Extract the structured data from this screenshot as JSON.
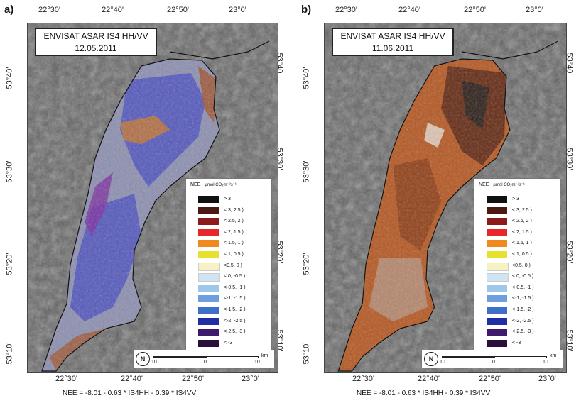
{
  "panels": [
    {
      "letter": "a)",
      "title_line1": "ENVISAT ASAR IS4 HH/VV",
      "title_line2": "12.05.2011",
      "dominant_colors": [
        "#4a4fc0",
        "#7b2ba0",
        "#a0522d",
        "#d2771e"
      ]
    },
    {
      "letter": "b)",
      "title_line1": "ENVISAT ASAR IS4 HH/VV",
      "title_line2": "11.06.2011",
      "dominant_colors": [
        "#5a2410",
        "#8b3a14",
        "#b5561f",
        "#1a1a1a"
      ]
    }
  ],
  "axis": {
    "top_lon_ticks": [
      "22°30'",
      "22°40'",
      "22°50'",
      "23°0'"
    ],
    "bottom_lon_ticks": [
      "22°30'",
      "22°40'",
      "22°50'",
      "23°0'"
    ],
    "left_lat_ticks": [
      "53°40'",
      "53°30'",
      "53°20'",
      "53°10'"
    ],
    "right_lat_ticks": [
      "53°40'",
      "53°30'",
      "53°20'",
      "53°10'"
    ]
  },
  "legend": {
    "title": "NEE",
    "unit": "µmol CO₂m⁻²s⁻¹",
    "classes": [
      {
        "label": "> 3",
        "color": "#111111"
      },
      {
        "label": "< 3, 2.5 )",
        "color": "#4a1a12"
      },
      {
        "label": "< 2.5, 2 )",
        "color": "#8b1a1a"
      },
      {
        "label": "< 2, 1.5 )",
        "color": "#e6262b"
      },
      {
        "label": "< 1.5, 1 )",
        "color": "#f08a1c"
      },
      {
        "label": "< 1, 0.5 )",
        "color": "#e6e02e"
      },
      {
        "label": "<0.5, 0 )",
        "color": "#f7f2c4"
      },
      {
        "label": "< 0, -0.5 )",
        "color": "#cfe4f4"
      },
      {
        "label": "<-0.5, -1 )",
        "color": "#9fc7ea"
      },
      {
        "label": "<-1, -1.5 )",
        "color": "#6d9fdc"
      },
      {
        "label": "<-1.5, -2 )",
        "color": "#3e6fc9"
      },
      {
        "label": "<-2, -2.5 )",
        "color": "#2030a4"
      },
      {
        "label": "<-2.5, -3 )",
        "color": "#3d1a6e"
      },
      {
        "label": "< -3",
        "color": "#2a0f3a"
      }
    ]
  },
  "scale": {
    "left": "10",
    "middle": "0",
    "right": "10",
    "unit": "km",
    "north": "N"
  },
  "formula": "NEE = -8.01 - 0.63 * IS4HH - 0.39 * IS4VV"
}
